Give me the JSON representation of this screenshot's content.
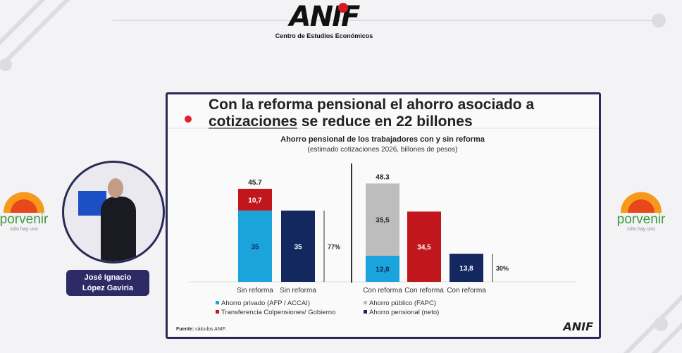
{
  "header": {
    "logo": "ANIF",
    "subtitle": "Centro de Estudios Económicos"
  },
  "sponsor": {
    "name": "porvenir",
    "tagline": "sólo hay uno"
  },
  "speaker": {
    "line1": "José Ignacio",
    "line2": "López Gaviria"
  },
  "slide": {
    "title_part1": "Con la reforma pensional el ahorro asociado a",
    "title_underlined": "cotizaciones",
    "title_part2": " se reduce en 22 billones",
    "source_label": "Fuente:",
    "source_text": " cálculos ANIF.",
    "footer_logo": "ANIF"
  },
  "chart_data": {
    "type": "bar",
    "title": "Ahorro pensional de los trabajadores con y sin reforma",
    "subtitle": "(estimado cotizaciones 2026, billones de pesos)",
    "categories": [
      "Sin reforma",
      "Sin reforma",
      "Con reforma",
      "Con reforma",
      "Con reforma"
    ],
    "series": [
      {
        "name": "Ahorro privado (AFP / ACCAI)",
        "color": "#1ba3dc",
        "values": [
          35,
          null,
          12.8,
          null,
          null
        ],
        "labels": [
          "35",
          null,
          "12,8",
          null,
          null
        ]
      },
      {
        "name": "Transferencia Colpensiones/ Gobierno",
        "color": "#c0161c",
        "values": [
          10.7,
          null,
          null,
          34.5,
          null
        ],
        "labels": [
          "10,7",
          null,
          null,
          "34,5",
          null
        ]
      },
      {
        "name": "Ahorro público (FAPC)",
        "color": "#bdbdbd",
        "values": [
          null,
          null,
          35.5,
          null,
          null
        ],
        "labels": [
          null,
          null,
          "35,5",
          null,
          null
        ]
      },
      {
        "name": "Ahorro pensional (neto)",
        "color": "#13285e",
        "values": [
          null,
          35,
          null,
          null,
          13.8
        ],
        "labels": [
          null,
          "35",
          null,
          null,
          "13,8"
        ]
      }
    ],
    "totals": [
      "45.7",
      null,
      "48.3",
      null,
      null
    ],
    "annotations": [
      {
        "bar": 1,
        "text": "77%"
      },
      {
        "bar": 4,
        "text": "30%"
      }
    ],
    "legend": "bottom",
    "grid": false
  }
}
